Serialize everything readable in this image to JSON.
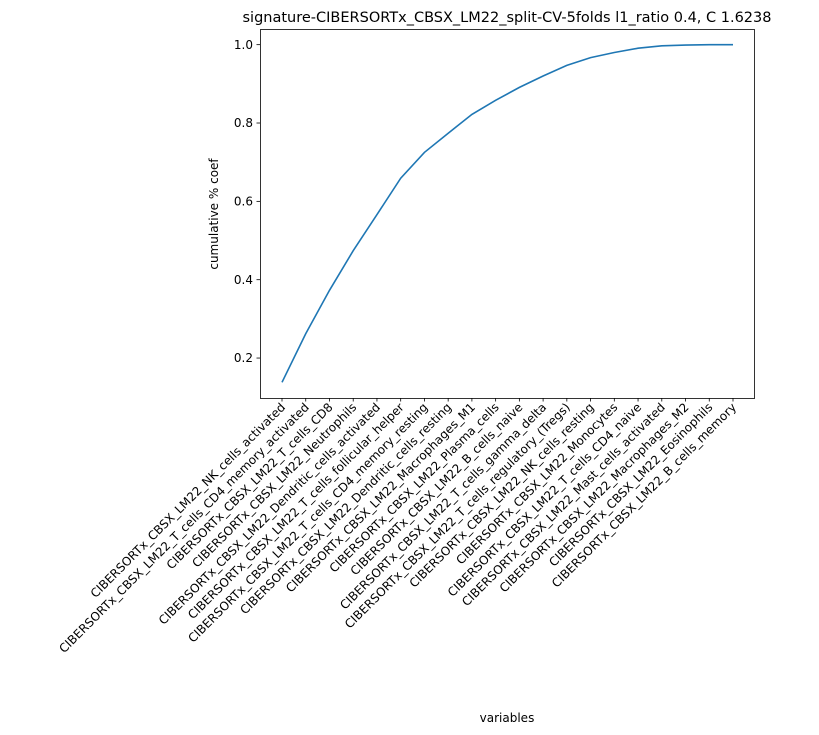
{
  "chart_data": {
    "type": "line",
    "title": "signature-CIBERSORTx_CBSX_LM22_split-CV-5folds l1_ratio 0.4, C 1.6238",
    "xlabel": "variables",
    "ylabel": "cumulative % coef",
    "categories": [
      "CIBERSORTx_CBSX_LM22_NK_cells_activated",
      "CIBERSORTx_CBSX_LM22_T_cells_CD4_memory_activated",
      "CIBERSORTx_CBSX_LM22_T_cells_CD8",
      "CIBERSORTx_CBSX_LM22_Neutrophils",
      "CIBERSORTx_CBSX_LM22_Dendritic_cells_activated",
      "CIBERSORTx_CBSX_LM22_T_cells_follicular_helper",
      "CIBERSORTx_CBSX_LM22_T_cells_CD4_memory_resting",
      "CIBERSORTx_CBSX_LM22_Dendritic_cells_resting",
      "CIBERSORTx_CBSX_LM22_Macrophages_M1",
      "CIBERSORTx_CBSX_LM22_Plasma_cells",
      "CIBERSORTx_CBSX_LM22_B_cells_naive",
      "CIBERSORTx_CBSX_LM22_T_cells_gamma_delta",
      "CIBERSORTx_CBSX_LM22_T_cells_regulatory_(Tregs)",
      "CIBERSORTx_CBSX_LM22_NK_cells_resting",
      "CIBERSORTx_CBSX_LM22_Monocytes",
      "CIBERSORTx_CBSX_LM22_T_cells_CD4_naive",
      "CIBERSORTx_CBSX_LM22_Mast_cells_activated",
      "CIBERSORTx_CBSX_LM22_Macrophages_M2",
      "CIBERSORTx_CBSX_LM22_Eosinophils",
      "CIBERSORTx_CBSX_LM22_B_cells_memory"
    ],
    "series": [
      {
        "values": [
          0.138,
          0.262,
          0.373,
          0.474,
          0.566,
          0.659,
          0.725,
          0.774,
          0.822,
          0.858,
          0.891,
          0.92,
          0.947,
          0.967,
          0.98,
          0.991,
          0.997,
          0.999,
          1.0,
          1.0
        ],
        "color": "#1f77b4"
      }
    ],
    "yticks": [
      0.2,
      0.4,
      0.6,
      0.8,
      1.0
    ],
    "ytick_labels": [
      "0.2",
      "0.4",
      "0.6",
      "0.8",
      "1.0"
    ],
    "ylim": [
      0.098,
      1.04
    ],
    "grid": false,
    "legend": "none"
  }
}
